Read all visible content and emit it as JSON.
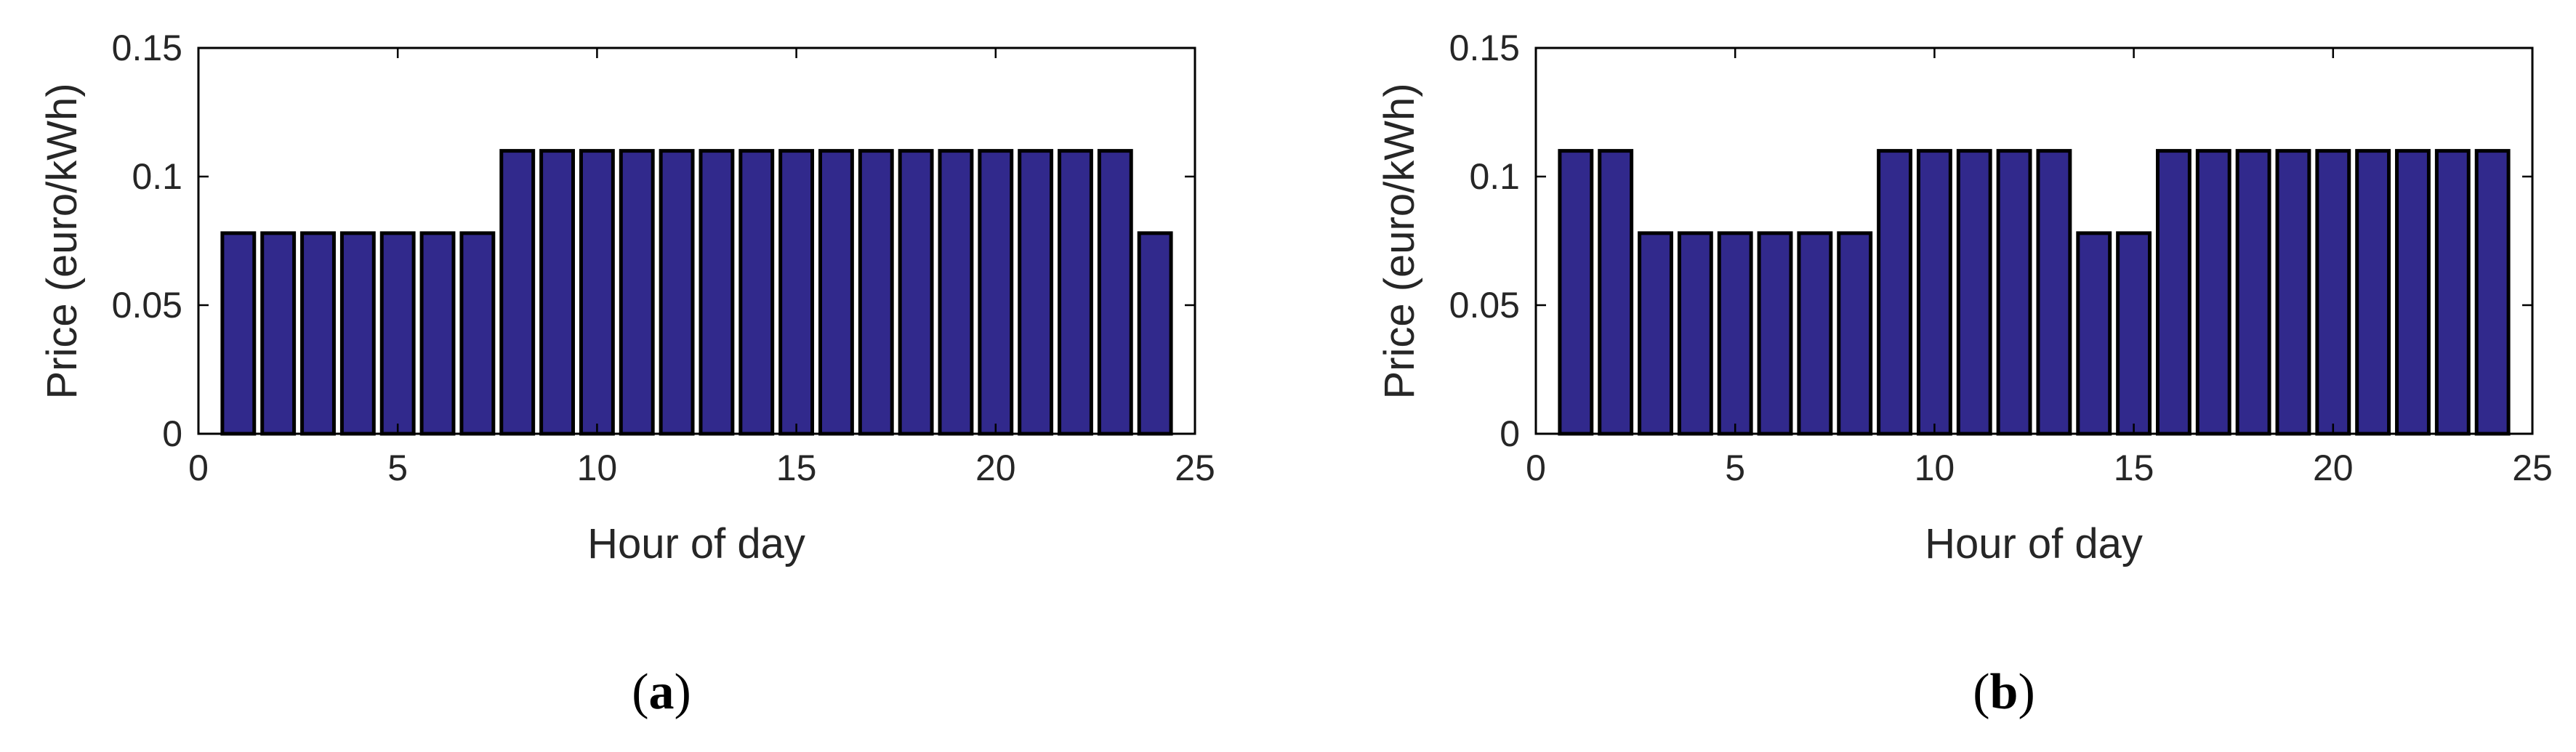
{
  "figure": {
    "bar_color": "#31298c",
    "bar_edge_color": "#000000"
  },
  "chart_data": [
    {
      "type": "bar",
      "panel_label": "(a)",
      "panel_label_parts": [
        "(",
        "a",
        ")"
      ],
      "xlabel": "Hour of day",
      "ylabel": "Price (euro/kWh)",
      "xlim": [
        0,
        25
      ],
      "ylim": [
        0,
        0.15
      ],
      "xticks": [
        "0",
        "5",
        "10",
        "15",
        "20",
        "25"
      ],
      "yticks": [
        "0",
        "0.05",
        "0.1",
        "0.15"
      ],
      "x": [
        1,
        2,
        3,
        4,
        5,
        6,
        7,
        8,
        9,
        10,
        11,
        12,
        13,
        14,
        15,
        16,
        17,
        18,
        19,
        20,
        21,
        22,
        23,
        24
      ],
      "values": [
        0.078,
        0.078,
        0.078,
        0.078,
        0.078,
        0.078,
        0.078,
        0.11,
        0.11,
        0.11,
        0.11,
        0.11,
        0.11,
        0.11,
        0.11,
        0.11,
        0.11,
        0.11,
        0.11,
        0.11,
        0.11,
        0.11,
        0.11,
        0.078
      ],
      "grid": false
    },
    {
      "type": "bar",
      "panel_label": "(b)",
      "panel_label_parts": [
        "(",
        "b",
        ")"
      ],
      "xlabel": "Hour of day",
      "ylabel": "Price (euro/kWh)",
      "xlim": [
        0,
        25
      ],
      "ylim": [
        0,
        0.15
      ],
      "xticks": [
        "0",
        "5",
        "10",
        "15",
        "20",
        "25"
      ],
      "yticks": [
        "0",
        "0.05",
        "0.1",
        "0.15"
      ],
      "x": [
        1,
        2,
        3,
        4,
        5,
        6,
        7,
        8,
        9,
        10,
        11,
        12,
        13,
        14,
        15,
        16,
        17,
        18,
        19,
        20,
        21,
        22,
        23,
        24
      ],
      "values": [
        0.11,
        0.11,
        0.078,
        0.078,
        0.078,
        0.078,
        0.078,
        0.078,
        0.11,
        0.11,
        0.11,
        0.11,
        0.11,
        0.078,
        0.078,
        0.11,
        0.11,
        0.11,
        0.11,
        0.11,
        0.11,
        0.11,
        0.11,
        0.11
      ],
      "grid": false
    }
  ]
}
